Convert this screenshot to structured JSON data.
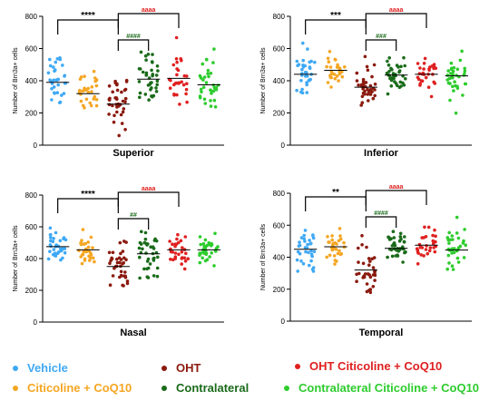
{
  "group_colors": {
    "Vehicle": "#3fa9f5",
    "Citicoline + CoQ10": "#f5a623",
    "OHT": "#8b1a0e",
    "Contralateral": "#1a6b1a",
    "OHT Citicoline + CoQ10": "#e02020",
    "Contralateral Citicoline + CoQ10": "#2ecc2e"
  },
  "legend": [
    {
      "label": "Vehicle",
      "color": "#3fa9f5"
    },
    {
      "label": "Citicoline + CoQ10",
      "color": "#f5a623"
    },
    {
      "label": "OHT",
      "color": "#8b1a0e"
    },
    {
      "label": "Contralateral",
      "color": "#1a6b1a"
    },
    {
      "label": "OHT Citicoline + CoQ10",
      "color": "#e02020"
    },
    {
      "label": "Contralateral Citicoline + CoQ10",
      "color": "#2ecc2e"
    }
  ],
  "chart_data": [
    {
      "type": "scatter",
      "title": "Superior",
      "ylabel": "Number of Brn3a+ cells",
      "ylim": [
        0,
        800
      ],
      "yticks": [
        0,
        200,
        400,
        600,
        800
      ],
      "groups": [
        "Vehicle",
        "Citicoline + CoQ10",
        "OHT",
        "Contralateral",
        "OHT Citicoline + CoQ10",
        "Contralateral Citicoline + CoQ10"
      ],
      "means": [
        390,
        320,
        255,
        410,
        415,
        375
      ],
      "spreads": [
        140,
        100,
        130,
        115,
        115,
        110
      ],
      "n_points": [
        34,
        30,
        38,
        38,
        30,
        36
      ],
      "comparisons": [
        {
          "from": 0,
          "to": 2,
          "label": "****",
          "color": "#000000"
        },
        {
          "from": 2,
          "to": 4,
          "label": "aaaa",
          "color": "#e02020"
        },
        {
          "from": 2,
          "to": 3,
          "label": "####",
          "color": "#1a6b1a"
        }
      ]
    },
    {
      "type": "scatter",
      "title": "Inferior",
      "ylabel": "Number of Brn3a+ cells",
      "ylim": [
        0,
        800
      ],
      "yticks": [
        0,
        200,
        400,
        600,
        800
      ],
      "groups": [
        "Vehicle",
        "Citicoline + CoQ10",
        "OHT",
        "Contralateral",
        "OHT Citicoline + CoQ10",
        "Contralateral Citicoline + CoQ10"
      ],
      "means": [
        440,
        465,
        360,
        435,
        440,
        430
      ],
      "spreads": [
        90,
        80,
        95,
        75,
        75,
        85
      ],
      "n_points": [
        34,
        30,
        38,
        38,
        30,
        36
      ],
      "comparisons": [
        {
          "from": 0,
          "to": 2,
          "label": "***",
          "color": "#000000"
        },
        {
          "from": 2,
          "to": 4,
          "label": "aaaa",
          "color": "#e02020"
        },
        {
          "from": 2,
          "to": 3,
          "label": "###",
          "color": "#1a6b1a"
        }
      ]
    },
    {
      "type": "scatter",
      "title": "Nasal",
      "ylabel": "Number of Brn3a+ cells",
      "ylim": [
        0,
        800
      ],
      "yticks": [
        0,
        200,
        400,
        600,
        800
      ],
      "groups": [
        "Vehicle",
        "Citicoline + CoQ10",
        "OHT",
        "Contralateral",
        "OHT Citicoline + CoQ10",
        "Contralateral Citicoline + CoQ10"
      ],
      "means": [
        475,
        455,
        350,
        430,
        455,
        455
      ],
      "spreads": [
        70,
        70,
        110,
        105,
        75,
        70
      ],
      "n_points": [
        34,
        30,
        38,
        38,
        30,
        36
      ],
      "comparisons": [
        {
          "from": 0,
          "to": 2,
          "label": "****",
          "color": "#000000"
        },
        {
          "from": 2,
          "to": 4,
          "label": "aaaa",
          "color": "#e02020"
        },
        {
          "from": 2,
          "to": 3,
          "label": "##",
          "color": "#1a6b1a"
        }
      ]
    },
    {
      "type": "scatter",
      "title": "Temporal",
      "ylabel": "Number of Brn3a+ cells",
      "ylim": [
        0,
        800
      ],
      "yticks": [
        0,
        200,
        400,
        600,
        800
      ],
      "groups": [
        "Vehicle",
        "Citicoline + CoQ10",
        "OHT",
        "Contralateral",
        "OHT Citicoline + CoQ10",
        "Contralateral Citicoline + CoQ10"
      ],
      "means": [
        450,
        465,
        320,
        455,
        475,
        445
      ],
      "spreads": [
        95,
        90,
        115,
        65,
        70,
        95
      ],
      "n_points": [
        34,
        30,
        38,
        38,
        30,
        36
      ],
      "comparisons": [
        {
          "from": 0,
          "to": 2,
          "label": "**",
          "color": "#000000"
        },
        {
          "from": 2,
          "to": 4,
          "label": "aaaa",
          "color": "#e02020"
        },
        {
          "from": 2,
          "to": 3,
          "label": "####",
          "color": "#1a6b1a"
        }
      ]
    }
  ]
}
